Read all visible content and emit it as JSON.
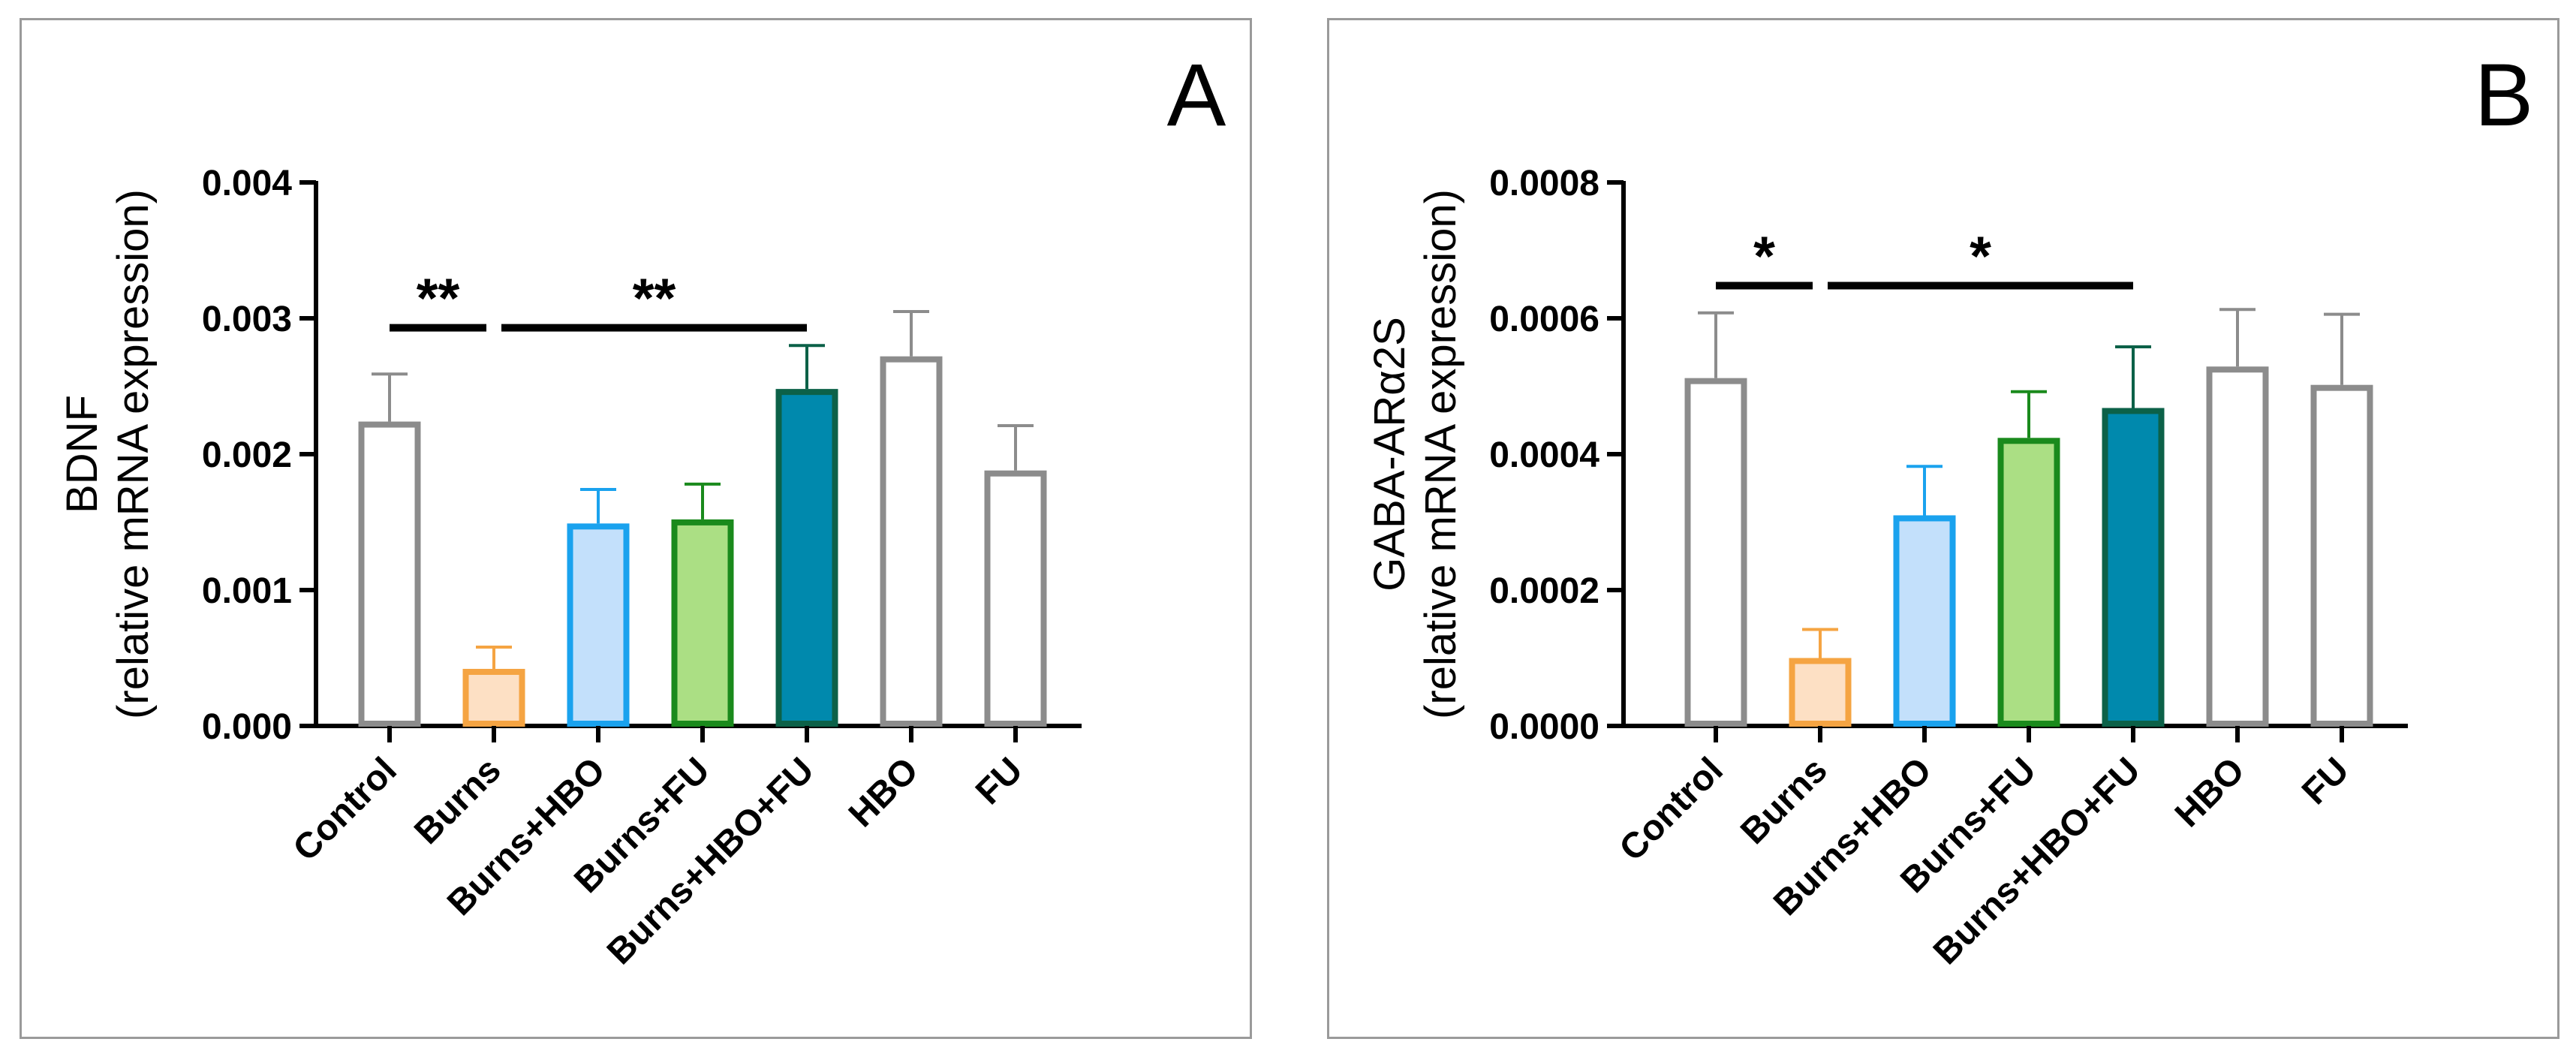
{
  "chart_data": [
    {
      "panel_letter": "A",
      "type": "bar",
      "ylabel_line1": "BDNF",
      "ylabel_line2": "(relative mRNA expression)",
      "ylim": [
        0,
        0.004
      ],
      "yticks": [
        "0.000",
        "0.001",
        "0.002",
        "0.003",
        "0.004"
      ],
      "categories": [
        "Control",
        "Burns",
        "Burns+HBO",
        "Burns+FU",
        "Burns+HBO+FU",
        "HBO",
        "FU"
      ],
      "values": [
        0.00224,
        0.00042,
        0.00149,
        0.00152,
        0.00248,
        0.00272,
        0.00188
      ],
      "errors": [
        0.00035,
        0.00016,
        0.00025,
        0.00026,
        0.00032,
        0.00033,
        0.00033
      ],
      "fill_colors": [
        "#ffffff",
        "#fde0c4",
        "#c3e0fb",
        "#abdf84",
        "#0089ad",
        "#ffffff",
        "#ffffff"
      ],
      "edge_colors": [
        "#8c8c8c",
        "#f5a442",
        "#1aa2ee",
        "#1a8a1c",
        "#0c6148",
        "#8c8c8c",
        "#8c8c8c"
      ],
      "significance": [
        {
          "from": 0,
          "to": 1,
          "label": "**",
          "y": 0.00293
        },
        {
          "from": 1,
          "to": 4,
          "label": "**",
          "y": 0.00293
        }
      ]
    },
    {
      "panel_letter": "B",
      "type": "bar",
      "ylabel_line1": "GABA-ARα2S",
      "ylabel_line2": "(relative mRNA expression)",
      "ylim": [
        0,
        0.0008
      ],
      "yticks": [
        "0.0000",
        "0.0002",
        "0.0004",
        "0.0006",
        "0.0008"
      ],
      "categories": [
        "Control",
        "Burns",
        "Burns+HBO",
        "Burns+FU",
        "Burns+HBO+FU",
        "HBO",
        "FU"
      ],
      "values": [
        0.000512,
        0.0001,
        0.00031,
        0.000424,
        0.000468,
        0.000529,
        0.000502
      ],
      "errors": [
        9.6e-05,
        4.2e-05,
        7.2e-05,
        6.8e-05,
        9e-05,
        8.4e-05,
        0.000104
      ],
      "fill_colors": [
        "#ffffff",
        "#fde0c4",
        "#c3e0fb",
        "#abdf84",
        "#0089ad",
        "#ffffff",
        "#ffffff"
      ],
      "edge_colors": [
        "#8c8c8c",
        "#f5a442",
        "#1aa2ee",
        "#1a8a1c",
        "#0c6148",
        "#8c8c8c",
        "#8c8c8c"
      ],
      "significance": [
        {
          "from": 0,
          "to": 1,
          "label": "*",
          "y": 0.000648
        },
        {
          "from": 1,
          "to": 4,
          "label": "*",
          "y": 0.000648
        }
      ]
    }
  ]
}
